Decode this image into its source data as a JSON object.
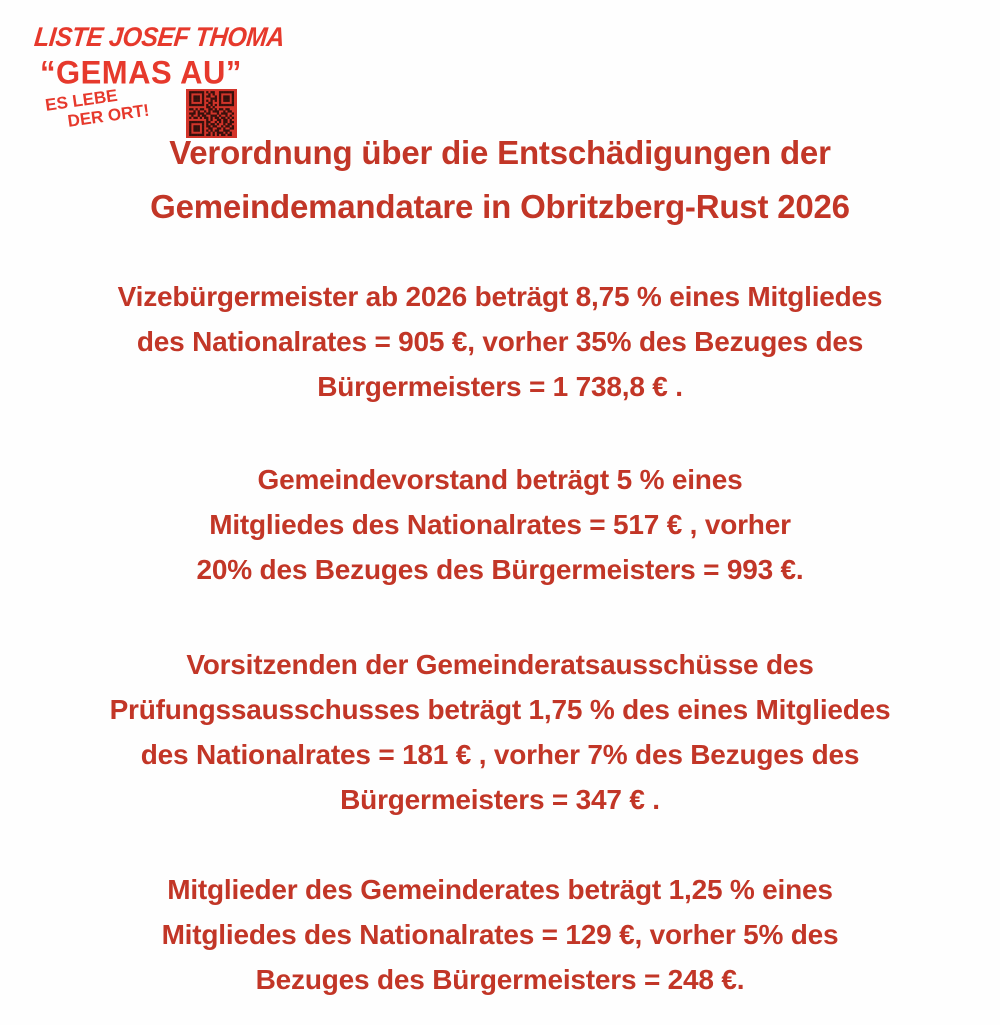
{
  "colors": {
    "text_red": "#c23627",
    "logo_red": "#e6392c",
    "qr_red": "#d2342a",
    "qr_dark": "#35100c",
    "bg": "#fefefe"
  },
  "logo": {
    "line1": "LISTE JOSEF THOMA",
    "line2": "“GEMAS AU”",
    "slogan_line1": "ES LEBE",
    "slogan_line2": "DER ORT!",
    "qr_pattern": [
      "111111101011001111111",
      "100000100101001000001",
      "101110101100101011101",
      "101110100011101011101",
      "101110101010101011101",
      "100000100110001000001",
      "111111101010101111111",
      "000000001101000000000",
      "110101100110101101100",
      "001010010101110010110",
      "111011101100010111001",
      "010010110011101001010",
      "101101011010110110101",
      "000000001010011011010",
      "111111101100101011011",
      "100000101011010010110",
      "101110101101100101101",
      "101110100110011010011",
      "101110101010110011100",
      "100000100101011101010",
      "111111101101010110110"
    ]
  },
  "title": "Verordnung über die Entschädigungen der\nGemeindemandatare in Obritzberg-Rust 2026",
  "paragraphs": [
    {
      "text": "Vizebürgermeister ab 2026 beträgt 8,75 % eines Mitgliedes\ndes Nationalrates = 905 €, vorher 35% des Bezuges des\nBürgermeisters = 1 738,8 € ."
    },
    {
      "text": "Gemeindevorstand beträgt 5 % eines\nMitgliedes des Nationalrates = 517 € , vorher\n20% des Bezuges des Bürgermeisters = 993 €."
    },
    {
      "text": "Vorsitzenden der Gemeinderatsausschüsse des\nPrüfungssausschusses beträgt 1,75 % des eines Mitgliedes\ndes Nationalrates = 181 € , vorher 7% des Bezuges des\nBürgermeisters = 347 € ."
    },
    {
      "text": "Mitglieder des Gemeinderates beträgt 1,25 % eines\nMitgliedes des Nationalrates = 129 €, vorher 5% des\nBezuges des Bürgermeisters = 248 €."
    }
  ]
}
